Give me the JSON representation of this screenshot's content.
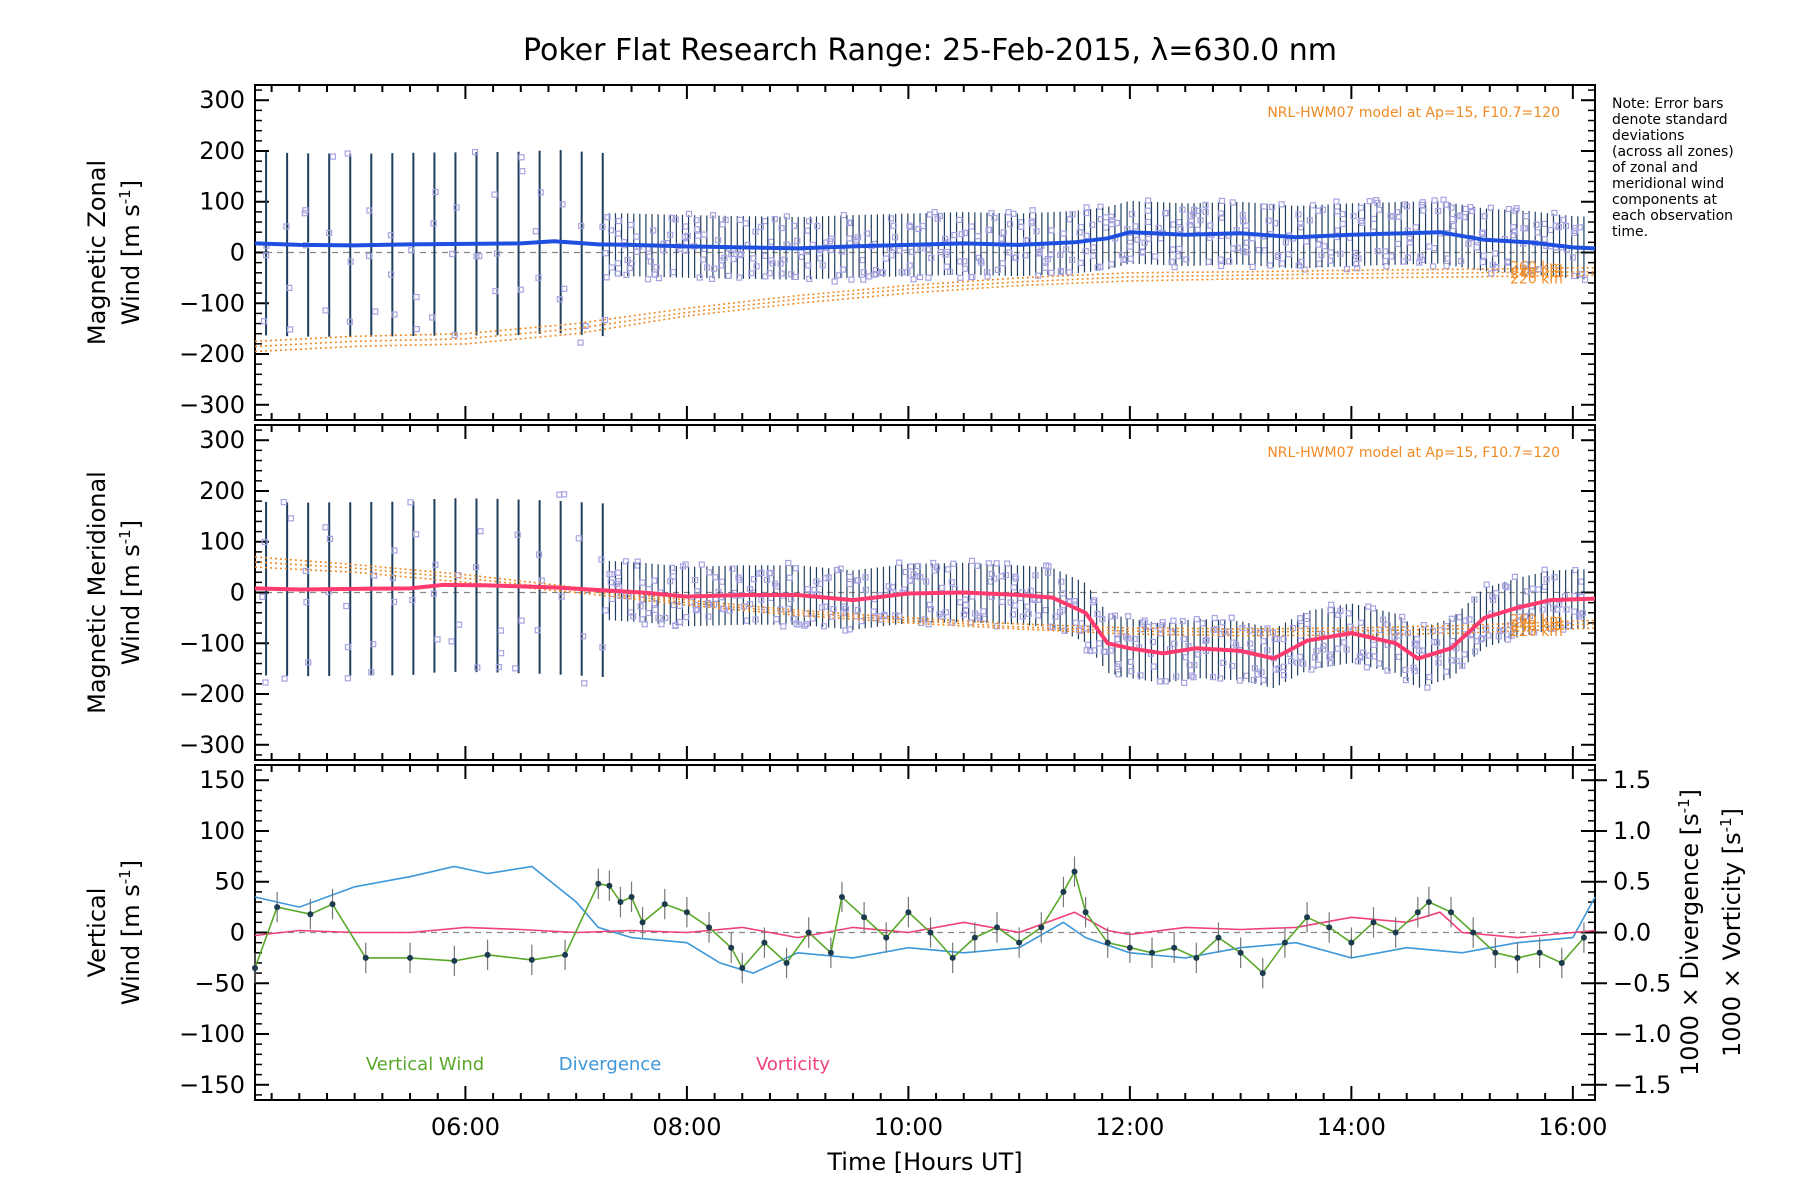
{
  "chart_data": {
    "title": "Poker Flat Research Range: 25-Feb-2015, λ=630.0 nm",
    "xlabel": "Time [Hours UT]",
    "x_range_hours": [
      4.1,
      16.2
    ],
    "x_ticks": [
      6,
      8,
      10,
      12,
      14,
      16
    ],
    "x_tick_labels": [
      "06:00",
      "08:00",
      "10:00",
      "12:00",
      "14:00",
      "16:00"
    ],
    "note_lines": [
      "Note: Error bars",
      "denote standard",
      "deviations",
      "(across all zones)",
      "of zonal and",
      "meridional wind",
      "components at",
      "each observation",
      "time."
    ],
    "colors": {
      "zonal_mean": "#1f4fe0",
      "meridional_mean": "#ff3a6e",
      "vertical": "#5aa82a",
      "divergence": "#3d97d9",
      "vorticity": "#f0407a",
      "model": "#f08a24",
      "scatter": "#a7a3e0",
      "error_bar": "#1f3f5f"
    },
    "panels": [
      {
        "type": "line",
        "ylabel_line1": "Magnetic Zonal",
        "ylabel_line2": "Wind [m s",
        "ylabel_sup": "-1",
        "ylabel_close": "]",
        "ylim": [
          -330,
          330
        ],
        "y_ticks": [
          300,
          200,
          100,
          0,
          -100,
          -200,
          -300
        ],
        "y_tick_labels": [
          "300",
          "200",
          "100",
          "0",
          "−100",
          "−200",
          "−300"
        ],
        "model_label": "NRL-HWM07 model at Ap=15, F10.7=120",
        "model_altitude_labels": [
          "260 km",
          "240 km",
          "220 km"
        ],
        "mean": {
          "x": [
            4.1,
            4.5,
            5.0,
            5.5,
            6.0,
            6.5,
            6.8,
            7.2,
            7.5,
            8.0,
            8.5,
            9.0,
            9.5,
            10.0,
            10.5,
            11.0,
            11.5,
            11.8,
            12.0,
            12.5,
            13.0,
            13.5,
            14.0,
            14.5,
            14.8,
            15.2,
            15.6,
            16.0,
            16.2
          ],
          "y": [
            18,
            15,
            14,
            16,
            17,
            18,
            22,
            16,
            15,
            12,
            10,
            8,
            12,
            15,
            18,
            15,
            20,
            28,
            40,
            35,
            38,
            30,
            35,
            38,
            40,
            25,
            20,
            10,
            8
          ]
        },
        "error_sd": 95,
        "models": [
          {
            "name": "260 km",
            "x": [
              4.1,
              5.0,
              6.0,
              7.0,
              8.0,
              9.0,
              10.0,
              11.0,
              12.0,
              13.0,
              14.0,
              15.0,
              16.2
            ],
            "y": [
              -175,
              -165,
              -160,
              -140,
              -110,
              -85,
              -65,
              -50,
              -40,
              -38,
              -35,
              -33,
              -30
            ]
          },
          {
            "name": "240 km",
            "x": [
              4.1,
              5.0,
              6.0,
              7.0,
              8.0,
              9.0,
              10.0,
              11.0,
              12.0,
              13.0,
              14.0,
              15.0,
              16.2
            ],
            "y": [
              -185,
              -175,
              -170,
              -150,
              -118,
              -92,
              -72,
              -58,
              -48,
              -45,
              -42,
              -40,
              -38
            ]
          },
          {
            "name": "220 km",
            "x": [
              4.1,
              5.0,
              6.0,
              7.0,
              8.0,
              9.0,
              10.0,
              11.0,
              12.0,
              13.0,
              14.0,
              15.0,
              16.2
            ],
            "y": [
              -195,
              -185,
              -180,
              -160,
              -125,
              -100,
              -80,
              -65,
              -56,
              -52,
              -50,
              -48,
              -45
            ]
          }
        ]
      },
      {
        "type": "line",
        "ylabel_line1": "Magnetic Meridional",
        "ylabel_line2": "Wind [m s",
        "ylabel_sup": "-1",
        "ylabel_close": "]",
        "ylim": [
          -330,
          330
        ],
        "y_ticks": [
          300,
          200,
          100,
          0,
          -100,
          -200,
          -300
        ],
        "y_tick_labels": [
          "300",
          "200",
          "100",
          "0",
          "−100",
          "−200",
          "−300"
        ],
        "model_label": "NRL-HWM07 model at Ap=15, F10.7=120",
        "model_altitude_labels": [
          "260 km",
          "240 km",
          "220 km"
        ],
        "mean": {
          "x": [
            4.1,
            4.5,
            5.0,
            5.5,
            5.8,
            6.2,
            6.8,
            7.2,
            7.6,
            8.0,
            8.5,
            9.0,
            9.5,
            10.0,
            10.5,
            11.0,
            11.3,
            11.6,
            11.8,
            12.0,
            12.3,
            12.6,
            13.0,
            13.3,
            13.6,
            14.0,
            14.4,
            14.6,
            14.9,
            15.2,
            15.5,
            15.8,
            16.2
          ],
          "y": [
            8,
            6,
            7,
            8,
            15,
            14,
            10,
            5,
            0,
            -8,
            -5,
            -5,
            -15,
            -2,
            0,
            -5,
            -10,
            -40,
            -100,
            -110,
            -120,
            -110,
            -115,
            -130,
            -95,
            -80,
            -100,
            -130,
            -110,
            -50,
            -30,
            -15,
            -12
          ]
        },
        "error_sd": 90,
        "models": [
          {
            "name": "260 km",
            "x": [
              4.1,
              5.0,
              6.0,
              7.0,
              8.0,
              9.0,
              10.0,
              11.0,
              12.0,
              13.0,
              14.0,
              15.0,
              16.2
            ],
            "y": [
              70,
              55,
              35,
              10,
              -15,
              -35,
              -50,
              -62,
              -70,
              -72,
              -70,
              -65,
              -55
            ]
          },
          {
            "name": "240 km",
            "x": [
              4.1,
              5.0,
              6.0,
              7.0,
              8.0,
              9.0,
              10.0,
              11.0,
              12.0,
              13.0,
              14.0,
              15.0,
              16.2
            ],
            "y": [
              60,
              48,
              28,
              5,
              -20,
              -40,
              -55,
              -68,
              -76,
              -78,
              -76,
              -72,
              -62
            ]
          },
          {
            "name": "220 km",
            "x": [
              4.1,
              5.0,
              6.0,
              7.0,
              8.0,
              9.0,
              10.0,
              11.0,
              12.0,
              13.0,
              14.0,
              15.0,
              16.2
            ],
            "y": [
              50,
              40,
              20,
              0,
              -25,
              -45,
              -60,
              -72,
              -82,
              -85,
              -84,
              -80,
              -70
            ]
          }
        ]
      },
      {
        "type": "line",
        "ylabel_line1": "Vertical",
        "ylabel_line2": "Wind [m s",
        "ylabel_sup": "-1",
        "ylabel_close": "]",
        "ylim": [
          -165,
          165
        ],
        "y_ticks": [
          150,
          100,
          50,
          0,
          -50,
          -100,
          -150
        ],
        "y_tick_labels": [
          "150",
          "100",
          "50",
          "0",
          "−50",
          "−100",
          "−150"
        ],
        "right_ylim": [
          -1.65,
          1.65
        ],
        "right_ticks": [
          1.5,
          1.0,
          0.5,
          0.0,
          -0.5,
          -1.0,
          -1.5
        ],
        "right_tick_labels": [
          "1.5",
          "1.0",
          "0.5",
          "0.0",
          "−0.5",
          "−1.0",
          "−1.5"
        ],
        "right_label_div": "1000 × Divergence [s",
        "right_label_vor": "1000 × Vorticity [s",
        "right_label_sup": "-1",
        "right_label_close": "]",
        "legend": [
          "Vertical Wind",
          "Divergence",
          "Vorticity"
        ],
        "vertical": {
          "x": [
            4.1,
            4.3,
            4.6,
            4.8,
            5.1,
            5.5,
            5.9,
            6.2,
            6.6,
            6.9,
            7.2,
            7.3,
            7.4,
            7.5,
            7.6,
            7.8,
            8.0,
            8.2,
            8.4,
            8.5,
            8.7,
            8.9,
            9.1,
            9.3,
            9.4,
            9.6,
            9.8,
            10.0,
            10.2,
            10.4,
            10.6,
            10.8,
            11.0,
            11.2,
            11.4,
            11.5,
            11.6,
            11.8,
            12.0,
            12.2,
            12.4,
            12.6,
            12.8,
            13.0,
            13.2,
            13.4,
            13.6,
            13.8,
            14.0,
            14.2,
            14.4,
            14.6,
            14.7,
            14.9,
            15.1,
            15.3,
            15.5,
            15.7,
            15.9,
            16.1
          ],
          "y": [
            -35,
            25,
            18,
            28,
            -25,
            -25,
            -28,
            -22,
            -27,
            -22,
            48,
            46,
            30,
            35,
            10,
            28,
            20,
            5,
            -15,
            -35,
            -10,
            -30,
            0,
            -20,
            35,
            15,
            -5,
            20,
            0,
            -25,
            -5,
            5,
            -10,
            5,
            40,
            60,
            20,
            -10,
            -15,
            -20,
            -15,
            -25,
            -5,
            -20,
            -40,
            -10,
            15,
            5,
            -10,
            10,
            0,
            20,
            30,
            20,
            0,
            -20,
            -25,
            -20,
            -30,
            -5
          ],
          "err": [
            15,
            15,
            15,
            15,
            15,
            15,
            15,
            15,
            15,
            15,
            15,
            15,
            15,
            15,
            15,
            15,
            15,
            15,
            15,
            15,
            15,
            15,
            15,
            15,
            15,
            15,
            15,
            15,
            15,
            15,
            15,
            15,
            15,
            15,
            15,
            15,
            15,
            15,
            15,
            15,
            15,
            15,
            15,
            15,
            15,
            15,
            15,
            15,
            15,
            15,
            15,
            15,
            15,
            15,
            15,
            15,
            15,
            15,
            15,
            15
          ]
        },
        "divergence": {
          "x": [
            4.1,
            4.5,
            5.0,
            5.5,
            5.9,
            6.2,
            6.6,
            7.0,
            7.2,
            7.5,
            8.0,
            8.3,
            8.6,
            9.0,
            9.5,
            10.0,
            10.5,
            11.0,
            11.4,
            11.6,
            12.0,
            12.5,
            13.0,
            13.5,
            14.0,
            14.5,
            15.0,
            15.5,
            16.0,
            16.2
          ],
          "y": [
            0.35,
            0.25,
            0.45,
            0.55,
            0.65,
            0.58,
            0.65,
            0.3,
            0.05,
            -0.05,
            -0.1,
            -0.3,
            -0.4,
            -0.2,
            -0.25,
            -0.15,
            -0.2,
            -0.15,
            0.1,
            -0.05,
            -0.2,
            -0.25,
            -0.15,
            -0.1,
            -0.25,
            -0.15,
            -0.2,
            -0.1,
            -0.05,
            0.35
          ]
        },
        "vorticity": {
          "x": [
            4.1,
            4.5,
            5.0,
            5.5,
            6.0,
            6.5,
            7.0,
            7.5,
            8.0,
            8.5,
            9.0,
            9.5,
            10.0,
            10.5,
            11.0,
            11.5,
            11.8,
            12.0,
            12.5,
            13.0,
            13.5,
            14.0,
            14.5,
            14.8,
            15.0,
            15.5,
            16.0,
            16.2
          ],
          "y": [
            -0.03,
            0.02,
            0.0,
            0.0,
            0.05,
            0.03,
            0.0,
            0.02,
            0.0,
            0.05,
            -0.05,
            0.05,
            0.0,
            0.1,
            0.0,
            0.2,
            0.02,
            -0.02,
            0.05,
            0.03,
            0.05,
            0.15,
            0.1,
            0.2,
            0.0,
            -0.05,
            0.0,
            0.02
          ]
        }
      }
    ]
  }
}
